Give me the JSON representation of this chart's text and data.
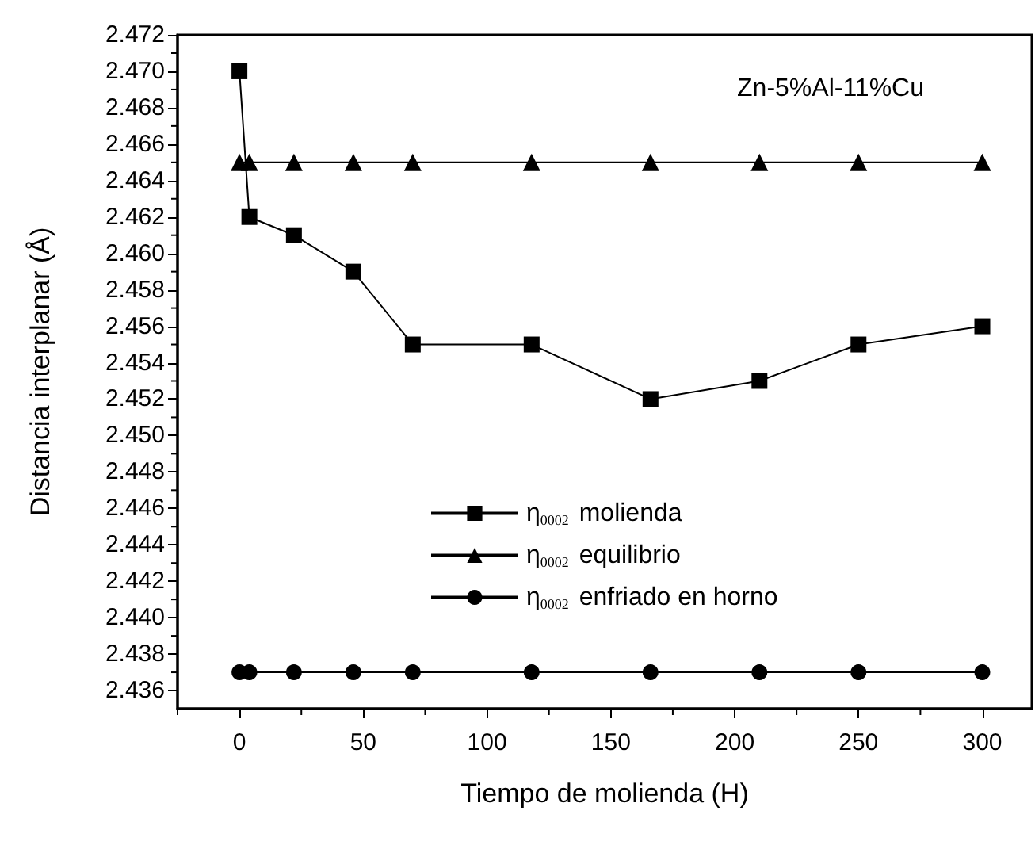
{
  "chart_data": {
    "type": "line",
    "xlabel": "Tiempo de molienda (H)",
    "ylabel": "Distancia interplanar (Å)",
    "annotations": [
      "Zn-5%Al-11%Cu"
    ],
    "x": [
      0,
      4,
      22,
      46,
      70,
      118,
      166,
      210,
      250,
      300
    ],
    "series": [
      {
        "name": "η$_{0002}$ molienda",
        "color": "#000000",
        "marker": "square",
        "values": [
          2.47,
          2.462,
          2.461,
          2.459,
          2.455,
          2.455,
          2.452,
          2.453,
          2.455,
          2.456
        ]
      },
      {
        "name": "η$_{0002}$ equilibrio",
        "color": "#000000",
        "marker": "triangle",
        "values": [
          2.465,
          2.465,
          2.465,
          2.465,
          2.465,
          2.465,
          2.465,
          2.465,
          2.465,
          2.465
        ]
      },
      {
        "name": "η$_{0002}$ enfriado en horno",
        "color": "#000000",
        "marker": "circle",
        "values": [
          2.437,
          2.437,
          2.437,
          2.437,
          2.437,
          2.437,
          2.437,
          2.437,
          2.437,
          2.437
        ]
      }
    ],
    "xlim": [
      -25,
      320
    ],
    "xticks": [
      0,
      50,
      100,
      150,
      200,
      250,
      300
    ],
    "ylim": [
      2.435,
      2.472
    ],
    "yticks": [
      2.436,
      2.438,
      {
        "value": 2.44,
        "label": "2.440"
      },
      2.442,
      2.444,
      2.446,
      2.448,
      {
        "value": 2.45,
        "label": "2.450"
      },
      2.452,
      2.454,
      2.456,
      2.458,
      {
        "value": 2.46,
        "label": "2.460"
      },
      2.462,
      2.464,
      2.466,
      2.468,
      {
        "value": 2.47,
        "label": "2.470"
      },
      2.472
    ],
    "grid": false,
    "legend": "center",
    "line_style": "solid"
  }
}
